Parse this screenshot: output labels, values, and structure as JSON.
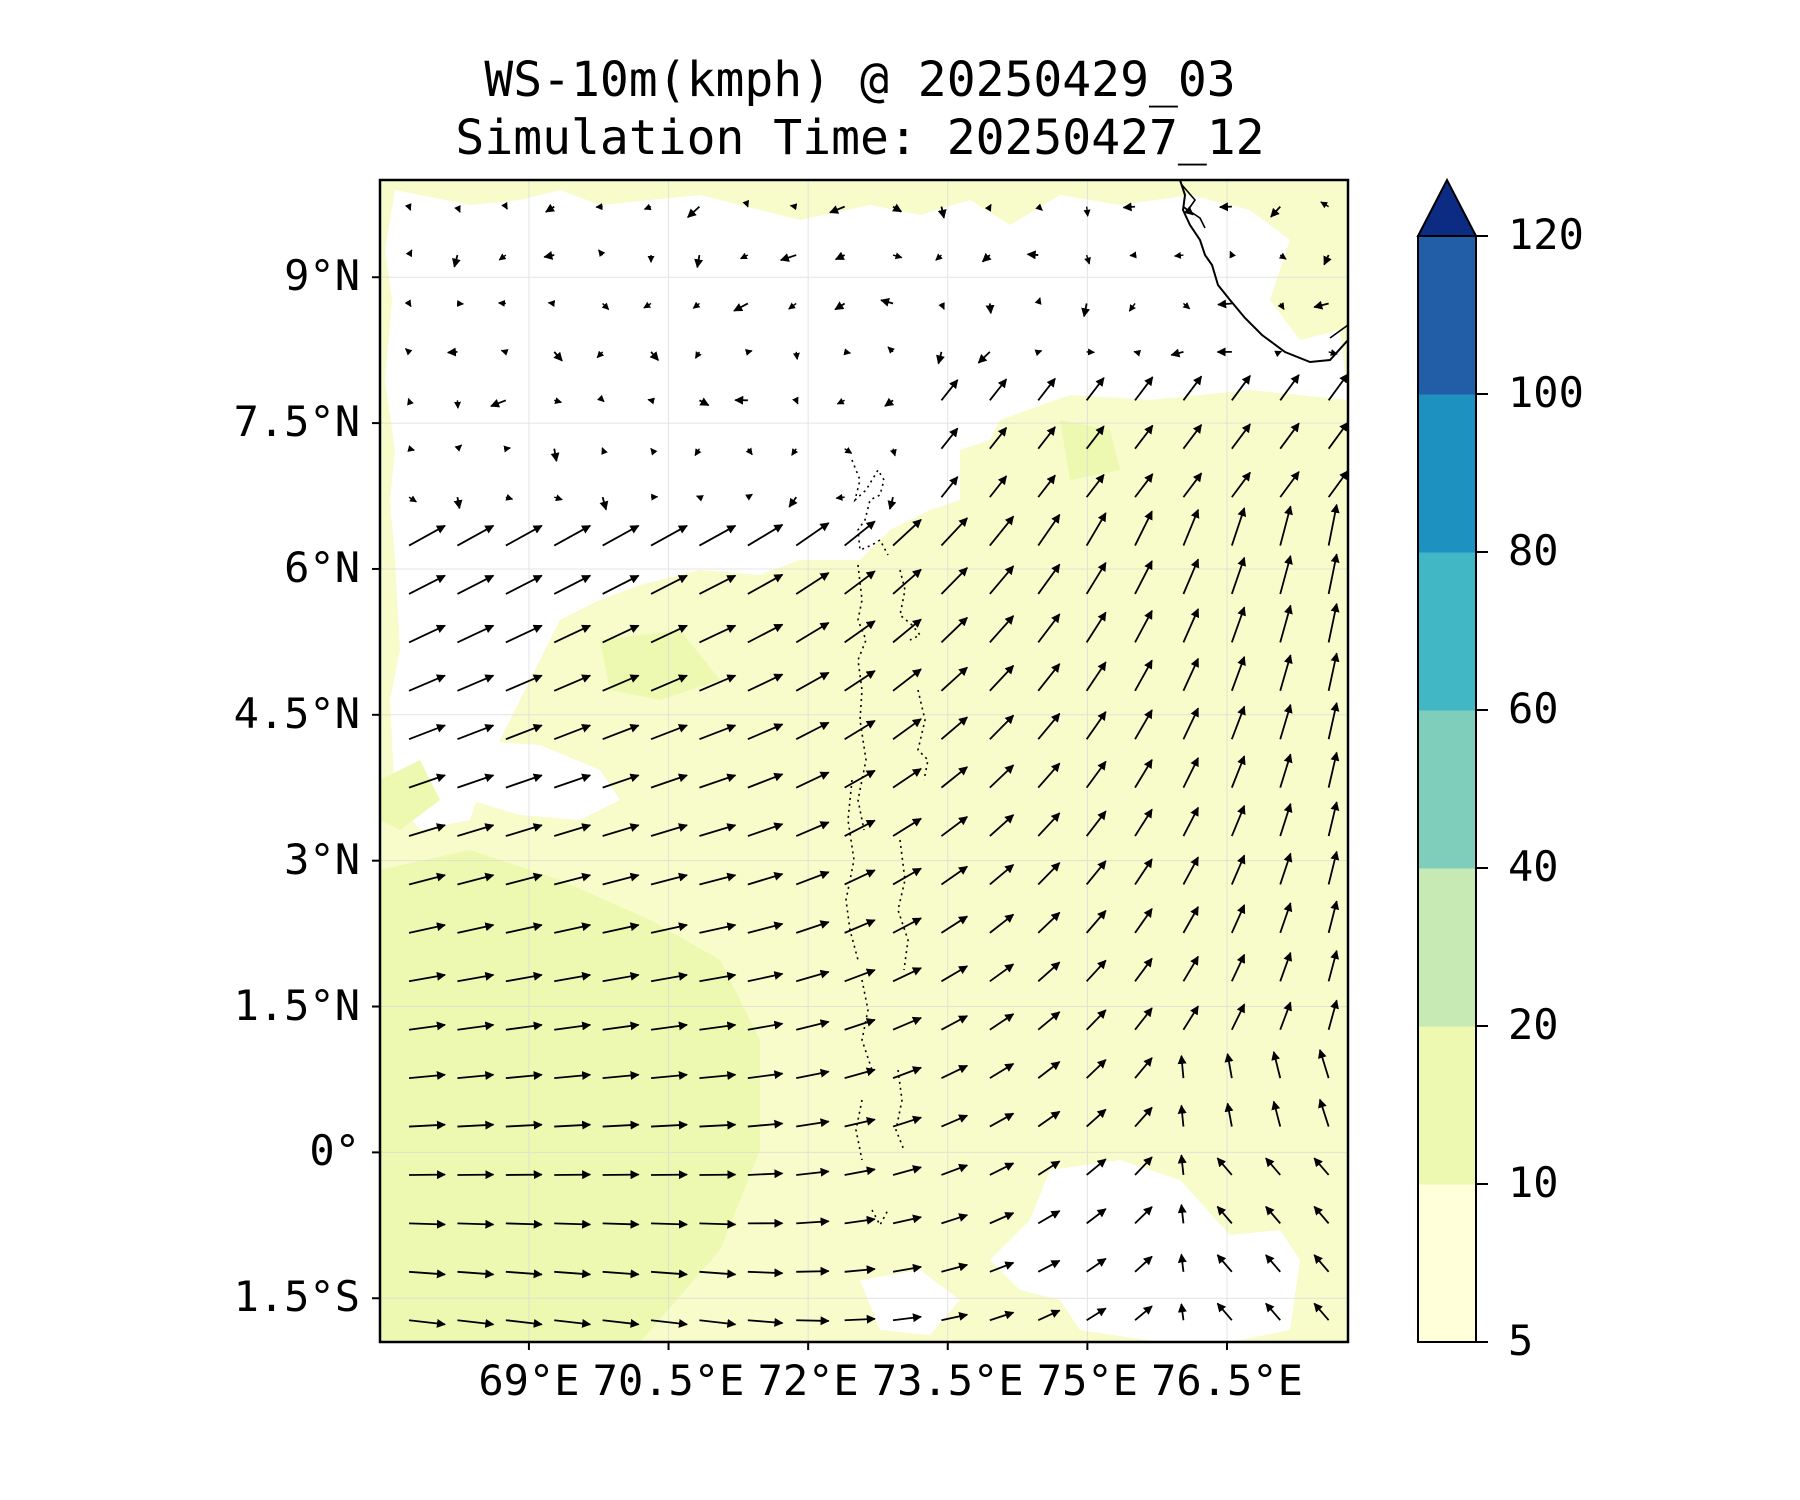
{
  "title": {
    "line1": "WS-10m(kmph) @ 20250429_03",
    "line2": "Simulation Time: 20250427_12"
  },
  "map": {
    "lon_range": [
      67.4,
      77.8
    ],
    "lat_range": [
      -1.95,
      10.0
    ],
    "y_ticks": [
      {
        "lat": 9.0,
        "label": "9°N"
      },
      {
        "lat": 7.5,
        "label": "7.5°N"
      },
      {
        "lat": 6.0,
        "label": "6°N"
      },
      {
        "lat": 4.5,
        "label": "4.5°N"
      },
      {
        "lat": 3.0,
        "label": "3°N"
      },
      {
        "lat": 1.5,
        "label": "1.5°N"
      },
      {
        "lat": 0.0,
        "label": "0°"
      },
      {
        "lat": -1.5,
        "label": "1.5°S"
      }
    ],
    "x_ticks": [
      {
        "lon": 69.0,
        "label": "69°E"
      },
      {
        "lon": 70.5,
        "label": "70.5°E"
      },
      {
        "lon": 72.0,
        "label": "72°E"
      },
      {
        "lon": 73.5,
        "label": "73.5°E"
      },
      {
        "lon": 75.0,
        "label": "75°E"
      },
      {
        "lon": 76.5,
        "label": "76.5°E"
      }
    ],
    "grid": true,
    "field_colors": {
      "white": "#ffffff",
      "pale": "#ffffd9",
      "light": "#edf8b1"
    }
  },
  "colorbar": {
    "levels": [
      5,
      10,
      20,
      40,
      60,
      80,
      100,
      120
    ],
    "labels": [
      "5",
      "10",
      "20",
      "40",
      "60",
      "80",
      "100",
      "120"
    ],
    "colors": [
      "#ffffd9",
      "#edf8b1",
      "#c7e9b4",
      "#7fcdbb",
      "#41b6c4",
      "#1d91c0",
      "#225ea8"
    ],
    "extend_max_color": "#0c2c84",
    "extend": "max"
  }
}
